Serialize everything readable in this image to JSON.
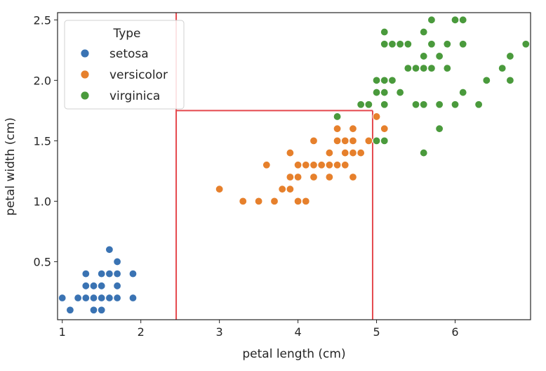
{
  "chart_data": {
    "type": "scatter",
    "title": "",
    "xlabel": "petal length (cm)",
    "ylabel": "petal width (cm)",
    "xlim": [
      0.94,
      6.96
    ],
    "ylim": [
      0.02,
      2.56
    ],
    "xticks": [
      1,
      2,
      3,
      4,
      5,
      6
    ],
    "yticks": [
      0.5,
      1.0,
      1.5,
      2.0,
      2.5
    ],
    "xtick_labels": [
      "1",
      "2",
      "3",
      "4",
      "5",
      "6"
    ],
    "ytick_labels": [
      "0.5",
      "1.0",
      "1.5",
      "2.0",
      "2.5"
    ],
    "grid": false,
    "legend": {
      "title": "Type",
      "placement": "top-left"
    },
    "series": [
      {
        "name": "setosa",
        "color": "#3a73b3",
        "points": [
          [
            1.0,
            0.2
          ],
          [
            1.1,
            0.1
          ],
          [
            1.2,
            0.2
          ],
          [
            1.3,
            0.2
          ],
          [
            1.3,
            0.3
          ],
          [
            1.3,
            0.4
          ],
          [
            1.4,
            0.1
          ],
          [
            1.4,
            0.2
          ],
          [
            1.4,
            0.3
          ],
          [
            1.5,
            0.1
          ],
          [
            1.5,
            0.2
          ],
          [
            1.5,
            0.3
          ],
          [
            1.5,
            0.4
          ],
          [
            1.6,
            0.2
          ],
          [
            1.6,
            0.4
          ],
          [
            1.6,
            0.6
          ],
          [
            1.7,
            0.2
          ],
          [
            1.7,
            0.3
          ],
          [
            1.7,
            0.4
          ],
          [
            1.7,
            0.5
          ],
          [
            1.9,
            0.2
          ],
          [
            1.9,
            0.4
          ]
        ]
      },
      {
        "name": "versicolor",
        "color": "#e6802c",
        "points": [
          [
            3.0,
            1.1
          ],
          [
            3.3,
            1.0
          ],
          [
            3.5,
            1.0
          ],
          [
            3.6,
            1.3
          ],
          [
            3.7,
            1.0
          ],
          [
            3.8,
            1.1
          ],
          [
            3.9,
            1.1
          ],
          [
            3.9,
            1.2
          ],
          [
            3.9,
            1.4
          ],
          [
            4.0,
            1.0
          ],
          [
            4.0,
            1.2
          ],
          [
            4.0,
            1.3
          ],
          [
            4.1,
            1.0
          ],
          [
            4.1,
            1.3
          ],
          [
            4.2,
            1.2
          ],
          [
            4.2,
            1.3
          ],
          [
            4.2,
            1.5
          ],
          [
            4.3,
            1.3
          ],
          [
            4.4,
            1.2
          ],
          [
            4.4,
            1.3
          ],
          [
            4.4,
            1.4
          ],
          [
            4.5,
            1.3
          ],
          [
            4.5,
            1.5
          ],
          [
            4.5,
            1.6
          ],
          [
            4.6,
            1.3
          ],
          [
            4.6,
            1.4
          ],
          [
            4.6,
            1.5
          ],
          [
            4.7,
            1.2
          ],
          [
            4.7,
            1.4
          ],
          [
            4.7,
            1.5
          ],
          [
            4.7,
            1.6
          ],
          [
            4.8,
            1.4
          ],
          [
            4.8,
            1.8
          ],
          [
            4.9,
            1.5
          ],
          [
            5.0,
            1.7
          ],
          [
            5.1,
            1.6
          ]
        ]
      },
      {
        "name": "virginica",
        "color": "#4a9a3c",
        "points": [
          [
            4.5,
            1.7
          ],
          [
            4.8,
            1.8
          ],
          [
            4.9,
            1.8
          ],
          [
            5.0,
            1.5
          ],
          [
            5.0,
            1.9
          ],
          [
            5.0,
            2.0
          ],
          [
            5.1,
            1.5
          ],
          [
            5.1,
            1.8
          ],
          [
            5.1,
            1.9
          ],
          [
            5.1,
            2.0
          ],
          [
            5.1,
            2.3
          ],
          [
            5.1,
            2.4
          ],
          [
            5.2,
            2.0
          ],
          [
            5.2,
            2.3
          ],
          [
            5.3,
            1.9
          ],
          [
            5.3,
            2.3
          ],
          [
            5.4,
            2.1
          ],
          [
            5.4,
            2.3
          ],
          [
            5.5,
            1.8
          ],
          [
            5.5,
            2.1
          ],
          [
            5.6,
            1.4
          ],
          [
            5.6,
            1.8
          ],
          [
            5.6,
            2.1
          ],
          [
            5.6,
            2.2
          ],
          [
            5.6,
            2.4
          ],
          [
            5.7,
            2.1
          ],
          [
            5.7,
            2.3
          ],
          [
            5.7,
            2.5
          ],
          [
            5.8,
            1.6
          ],
          [
            5.8,
            1.8
          ],
          [
            5.8,
            2.2
          ],
          [
            5.9,
            2.1
          ],
          [
            5.9,
            2.3
          ],
          [
            6.0,
            1.8
          ],
          [
            6.0,
            2.5
          ],
          [
            6.1,
            1.9
          ],
          [
            6.1,
            2.3
          ],
          [
            6.1,
            2.5
          ],
          [
            6.3,
            1.8
          ],
          [
            6.4,
            2.0
          ],
          [
            6.6,
            2.1
          ],
          [
            6.7,
            2.0
          ],
          [
            6.7,
            2.2
          ],
          [
            6.9,
            2.3
          ]
        ]
      }
    ],
    "annotations": {
      "lines_color": "#e5484d",
      "lines": [
        {
          "x": 2.45,
          "y0": 0.02,
          "y1": 2.56
        },
        {
          "x": 4.95,
          "y0": 0.02,
          "y1": 1.75
        },
        {
          "y": 1.75,
          "x0": 2.45,
          "x1": 4.95
        }
      ]
    }
  }
}
